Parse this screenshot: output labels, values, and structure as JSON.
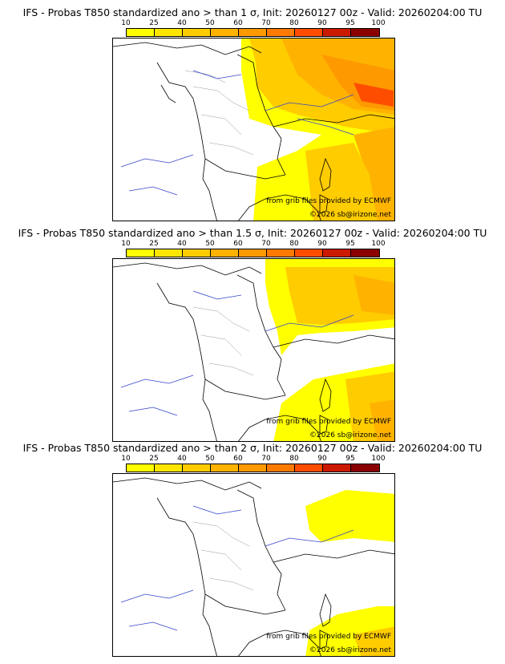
{
  "colors": {
    "levels": [
      "#ffff00",
      "#ffe600",
      "#ffcc00",
      "#ffb300",
      "#ff9900",
      "#ff7a00",
      "#ff4d00",
      "#cc1a00",
      "#8b0000",
      "#4a0000"
    ],
    "land": "#ffffff",
    "rivers": "#3344cc",
    "borders": "#000000"
  },
  "colorbar_ticks": [
    "10",
    "25",
    "40",
    "50",
    "60",
    "70",
    "80",
    "90",
    "95",
    "100"
  ],
  "panels": [
    {
      "title": "IFS - Probas T850  standardized ano > than 1 σ, Init: 20260127 00z - Valid: 20260204:00 TU",
      "credit_source": "from grib files provided by ECMWF",
      "credit_copyright": "©2026 sb@irizone.net"
    },
    {
      "title": "IFS - Probas T850  standardized ano > than 1.5 σ, Init: 20260127 00z - Valid: 20260204:00 TU",
      "credit_source": "from grib files provided by ECMWF",
      "credit_copyright": "©2026 sb@irizone.net"
    },
    {
      "title": "IFS - Probas T850  standardized ano > than 2 σ, Init: 20260127 00z - Valid: 20260204:00 TU",
      "credit_source": "from grib files provided by ECMWF",
      "credit_copyright": "©2026 sb@irizone.net"
    }
  ]
}
